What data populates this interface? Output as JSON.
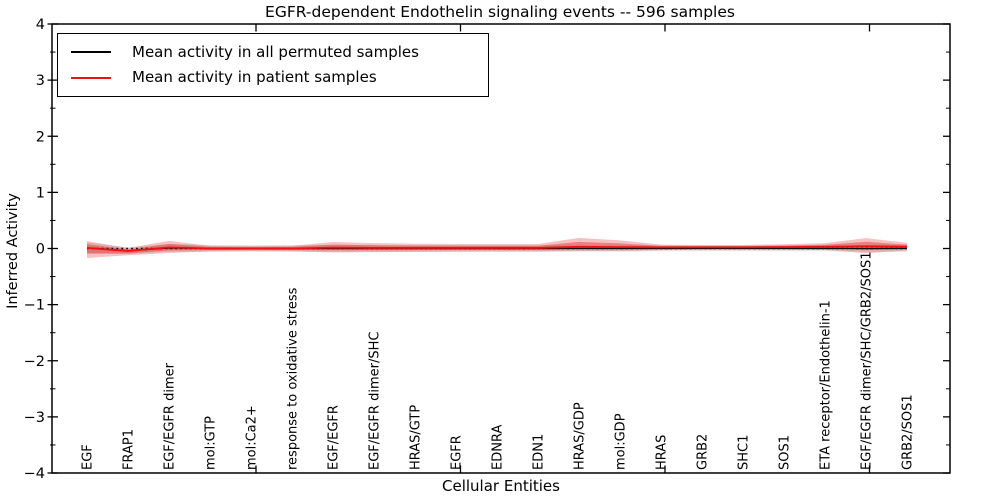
{
  "chart_data": {
    "type": "line",
    "title": "EGFR-dependent Endothelin signaling events -- 596 samples",
    "xlabel": "Cellular Entities",
    "ylabel": "Inferred Activity",
    "ylim": [
      -4,
      4
    ],
    "y_major_ticks": [
      4,
      3,
      2,
      1,
      0,
      -1,
      -2,
      -3,
      -4
    ],
    "y_minor_ticks": [
      3.5,
      2.5,
      1.5,
      0.5,
      -0.5,
      -1.5,
      -2.5,
      -3.5
    ],
    "grid": false,
    "legend_position": "upper left",
    "zero_line": true,
    "categories": [
      "EGF",
      "FRAP1",
      "EGF/EGFR dimer",
      "mol:GTP",
      "mol:Ca2+",
      "response to oxidative stress",
      "EGF/EGFR",
      "EGF/EGFR dimer/SHC",
      "HRAS/GTP",
      "EGFR",
      "EDNRA",
      "EDN1",
      "HRAS/GDP",
      "mol:GDP",
      "HRAS",
      "GRB2",
      "SHC1",
      "SOS1",
      "ETA receptor/Endothelin-1",
      "EGF/EGFR dimer/SHC/GRB2/SOS1",
      "GRB2/SOS1"
    ],
    "series": [
      {
        "name": "Mean activity in all permuted samples",
        "color": "#000000",
        "style": "solid",
        "values": [
          0.01,
          -0.04,
          0.01,
          0.0,
          0.0,
          0.0,
          0.0,
          0.0,
          0.0,
          0.0,
          0.0,
          0.0,
          0.0,
          0.0,
          0.0,
          0.0,
          0.0,
          0.0,
          0.0,
          0.0,
          0.0
        ]
      },
      {
        "name": "Mean activity in patient samples",
        "color": "#ee1111",
        "style": "solid",
        "values": [
          0.01,
          -0.045,
          0.02,
          0.0,
          0.0,
          0.0,
          0.015,
          0.01,
          0.01,
          0.01,
          0.01,
          0.01,
          0.03,
          0.025,
          0.02,
          0.02,
          0.02,
          0.025,
          0.03,
          0.04,
          0.03
        ]
      }
    ],
    "bands": [
      {
        "name": "permuted-samples-spread",
        "color": "rgba(0,0,0,0.10)",
        "upper": [
          0.11,
          0.02,
          0.08,
          0.065,
          0.06,
          0.06,
          0.065,
          0.06,
          0.06,
          0.06,
          0.055,
          0.055,
          0.055,
          0.055,
          0.05,
          0.05,
          0.05,
          0.05,
          0.05,
          0.06,
          0.06
        ],
        "lower": [
          -0.09,
          -0.1,
          -0.06,
          -0.065,
          -0.06,
          -0.06,
          -0.065,
          -0.06,
          -0.06,
          -0.06,
          -0.055,
          -0.055,
          -0.055,
          -0.055,
          -0.05,
          -0.05,
          -0.05,
          -0.05,
          -0.05,
          -0.06,
          -0.06
        ]
      },
      {
        "name": "patient-samples-spread-outer",
        "color": "rgba(221,34,34,0.28)",
        "upper": [
          0.13,
          0.01,
          0.135,
          0.05,
          0.045,
          0.05,
          0.115,
          0.095,
          0.085,
          0.08,
          0.08,
          0.08,
          0.19,
          0.145,
          0.07,
          0.065,
          0.065,
          0.075,
          0.095,
          0.185,
          0.1
        ],
        "lower": [
          -0.17,
          -0.12,
          -0.08,
          -0.05,
          -0.045,
          -0.05,
          -0.07,
          -0.065,
          -0.06,
          -0.055,
          -0.055,
          -0.055,
          -0.045,
          -0.045,
          -0.03,
          -0.02,
          -0.02,
          -0.02,
          -0.025,
          -0.085,
          -0.035
        ]
      },
      {
        "name": "patient-samples-spread-inner",
        "color": "rgba(215,25,25,0.38)",
        "upper": [
          0.076,
          -0.015,
          0.083,
          0.028,
          0.025,
          0.028,
          0.07,
          0.057,
          0.051,
          0.049,
          0.049,
          0.049,
          0.118,
          0.091,
          0.048,
          0.045,
          0.045,
          0.053,
          0.066,
          0.12,
          0.069
        ],
        "lower": [
          -0.089,
          -0.086,
          -0.035,
          -0.028,
          -0.025,
          -0.028,
          -0.032,
          -0.031,
          -0.029,
          -0.026,
          -0.026,
          -0.026,
          -0.011,
          -0.014,
          -0.008,
          -0.002,
          -0.002,
          0.0,
          0.0,
          -0.029,
          -0.006
        ]
      }
    ]
  },
  "legend": {
    "entries": [
      {
        "label": "Mean activity in all permuted samples",
        "color": "#000000"
      },
      {
        "label": "Mean activity in patient samples",
        "color": "#ee1111"
      }
    ]
  },
  "colors": {
    "axis": "#000000",
    "background": "#ffffff"
  }
}
